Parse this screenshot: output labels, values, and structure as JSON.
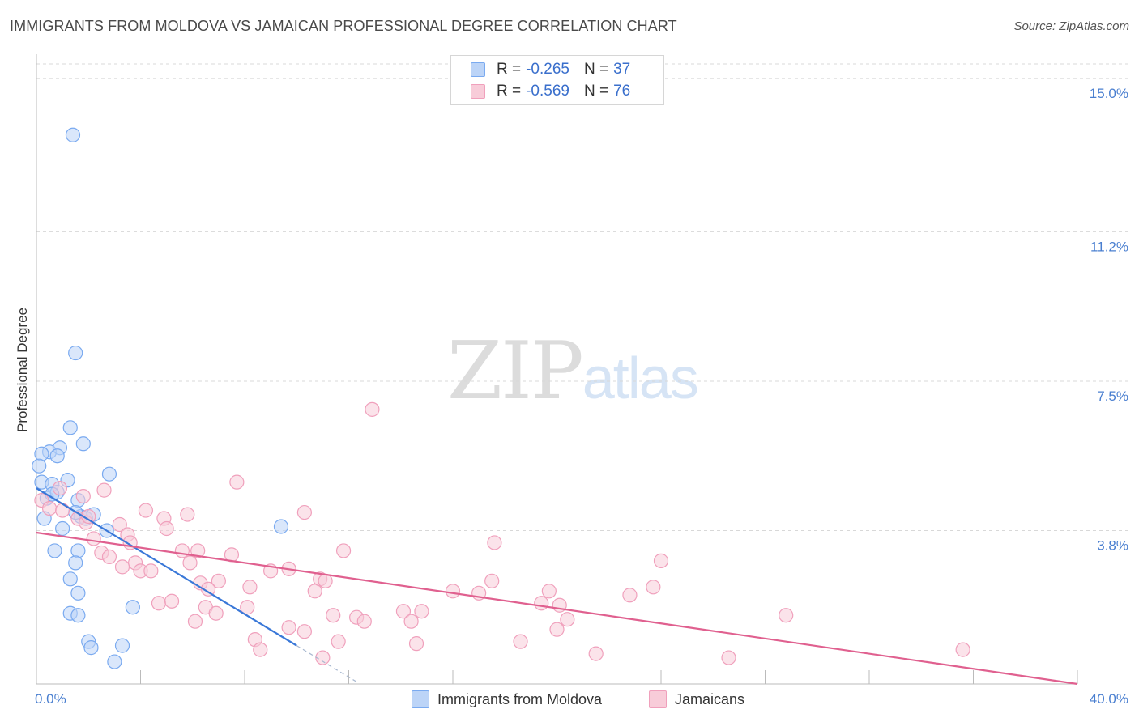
{
  "chart_data": {
    "type": "scatter",
    "title": "IMMIGRANTS FROM MOLDOVA VS JAMAICAN PROFESSIONAL DEGREE CORRELATION CHART",
    "source": "Source: ZipAtlas.com",
    "ylabel": "Professional Degree",
    "xlim": [
      0,
      40
    ],
    "ylim": [
      0,
      15.6
    ],
    "y_ticks": [
      {
        "value": 3.8,
        "label": "3.8%"
      },
      {
        "value": 7.5,
        "label": "7.5%"
      },
      {
        "value": 11.2,
        "label": "11.2%"
      },
      {
        "value": 15.0,
        "label": "15.0%"
      }
    ],
    "x_tick_labels": {
      "min": "0.0%",
      "max": "40.0%"
    },
    "grid": true,
    "legend_position": "bottom",
    "stats": [
      {
        "r_label": "R = ",
        "r_value": "-0.265",
        "n_label": "N = ",
        "n_value": "37"
      },
      {
        "r_label": "R = ",
        "r_value": "-0.569",
        "n_label": "N = ",
        "n_value": "76"
      }
    ],
    "series": [
      {
        "name": "Immigrants from Moldova",
        "color": "#7aaaf0",
        "fill": "#bcd4f7",
        "line_color": "#3a78d8",
        "trend": {
          "x0": 0,
          "y0": 4.85,
          "x1": 10,
          "y1": 0.95,
          "dash_to_x": 12.3
        },
        "points": [
          [
            1.4,
            13.6
          ],
          [
            1.5,
            8.2
          ],
          [
            1.3,
            6.35
          ],
          [
            1.8,
            5.95
          ],
          [
            0.5,
            5.75
          ],
          [
            0.9,
            5.85
          ],
          [
            0.2,
            5.7
          ],
          [
            0.8,
            5.65
          ],
          [
            2.8,
            5.2
          ],
          [
            0.1,
            5.4
          ],
          [
            0.2,
            5.0
          ],
          [
            0.6,
            4.95
          ],
          [
            1.2,
            5.05
          ],
          [
            0.4,
            4.6
          ],
          [
            0.8,
            4.75
          ],
          [
            0.6,
            4.7
          ],
          [
            1.6,
            4.55
          ],
          [
            0.3,
            4.1
          ],
          [
            1.7,
            4.15
          ],
          [
            1.5,
            4.25
          ],
          [
            1.9,
            4.1
          ],
          [
            2.2,
            4.2
          ],
          [
            1.0,
            3.85
          ],
          [
            2.7,
            3.8
          ],
          [
            0.7,
            3.3
          ],
          [
            1.6,
            3.3
          ],
          [
            1.5,
            3.0
          ],
          [
            9.4,
            3.9
          ],
          [
            1.3,
            2.6
          ],
          [
            1.6,
            2.25
          ],
          [
            3.7,
            1.9
          ],
          [
            1.3,
            1.75
          ],
          [
            1.6,
            1.7
          ],
          [
            2.0,
            1.05
          ],
          [
            2.1,
            0.9
          ],
          [
            3.3,
            0.95
          ],
          [
            3.0,
            0.55
          ]
        ]
      },
      {
        "name": "Jamaicans",
        "color": "#f0a0bc",
        "fill": "#f8ccd9",
        "line_color": "#e0608f",
        "trend": {
          "x0": 0,
          "y0": 3.75,
          "x1": 40,
          "y1": 0.0
        },
        "points": [
          [
            0.2,
            4.55
          ],
          [
            0.5,
            4.35
          ],
          [
            0.9,
            4.85
          ],
          [
            1.8,
            4.65
          ],
          [
            1.0,
            4.3
          ],
          [
            2.6,
            4.8
          ],
          [
            1.6,
            4.1
          ],
          [
            1.9,
            4.0
          ],
          [
            2.0,
            4.15
          ],
          [
            3.2,
            3.95
          ],
          [
            3.5,
            3.7
          ],
          [
            4.2,
            4.3
          ],
          [
            4.9,
            4.1
          ],
          [
            5.0,
            3.85
          ],
          [
            5.8,
            4.2
          ],
          [
            2.2,
            3.6
          ],
          [
            2.5,
            3.25
          ],
          [
            2.8,
            3.15
          ],
          [
            3.6,
            3.5
          ],
          [
            3.8,
            3.0
          ],
          [
            3.3,
            2.9
          ],
          [
            4.0,
            2.8
          ],
          [
            4.4,
            2.8
          ],
          [
            5.6,
            3.3
          ],
          [
            6.2,
            3.3
          ],
          [
            7.7,
            5.0
          ],
          [
            5.9,
            3.0
          ],
          [
            6.3,
            2.5
          ],
          [
            7.0,
            2.55
          ],
          [
            7.5,
            3.2
          ],
          [
            9.0,
            2.8
          ],
          [
            9.7,
            2.85
          ],
          [
            10.3,
            4.25
          ],
          [
            11.8,
            3.3
          ],
          [
            12.9,
            6.8
          ],
          [
            17.6,
            3.5
          ],
          [
            4.7,
            2.0
          ],
          [
            5.2,
            2.05
          ],
          [
            6.5,
            1.9
          ],
          [
            6.1,
            1.55
          ],
          [
            6.9,
            1.75
          ],
          [
            8.2,
            2.4
          ],
          [
            8.1,
            1.9
          ],
          [
            8.4,
            1.1
          ],
          [
            8.6,
            0.85
          ],
          [
            9.7,
            1.4
          ],
          [
            10.3,
            1.3
          ],
          [
            10.7,
            2.3
          ],
          [
            10.9,
            2.6
          ],
          [
            11.1,
            2.55
          ],
          [
            11.4,
            1.7
          ],
          [
            11.6,
            1.05
          ],
          [
            11.0,
            0.65
          ],
          [
            12.3,
            1.65
          ],
          [
            12.6,
            1.55
          ],
          [
            14.1,
            1.8
          ],
          [
            14.4,
            1.55
          ],
          [
            14.6,
            1.0
          ],
          [
            14.8,
            1.8
          ],
          [
            16.0,
            2.3
          ],
          [
            17.0,
            2.25
          ],
          [
            17.5,
            2.55
          ],
          [
            18.6,
            1.05
          ],
          [
            19.4,
            2.0
          ],
          [
            19.7,
            2.3
          ],
          [
            20.0,
            1.35
          ],
          [
            20.1,
            1.95
          ],
          [
            20.4,
            1.6
          ],
          [
            21.5,
            0.75
          ],
          [
            22.8,
            2.2
          ],
          [
            23.7,
            2.4
          ],
          [
            24.0,
            3.05
          ],
          [
            26.6,
            0.65
          ],
          [
            28.8,
            1.7
          ],
          [
            35.6,
            0.85
          ],
          [
            6.6,
            2.35
          ]
        ]
      }
    ]
  },
  "watermark": {
    "zip": "ZIP",
    "atlas": "atlas"
  }
}
